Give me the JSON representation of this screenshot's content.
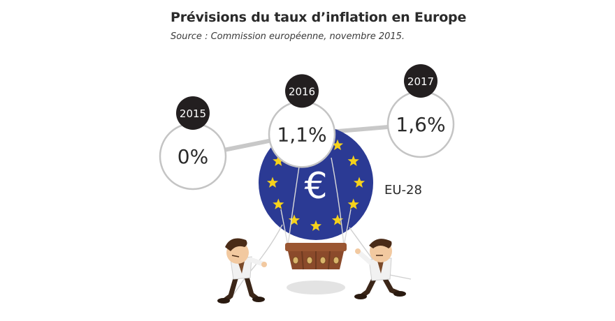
{
  "title": "Prévisions du taux d’inflation en Europe",
  "source": "Source : Commission européenne, novembre 2015.",
  "series_label": "EU-28",
  "euro_symbol": "€",
  "colors": {
    "balloon": "#2b3a94",
    "stars": "#f6d21b",
    "badge": "#231f20",
    "line": "#c8c8c8",
    "circle_border": "#c4c4c4",
    "basket": "#8b4a2b",
    "text": "#2a2a2a"
  },
  "chart_data": {
    "type": "line",
    "title": "Prévisions du taux d’inflation en Europe",
    "subtitle": "Source : Commission européenne, novembre 2015.",
    "categories": [
      "2015",
      "2016",
      "2017"
    ],
    "series": [
      {
        "name": "EU-28",
        "values": [
          0,
          1.1,
          1.6
        ]
      }
    ],
    "value_labels": [
      "0%",
      "1,1%",
      "1,6%"
    ],
    "unit": "%"
  }
}
